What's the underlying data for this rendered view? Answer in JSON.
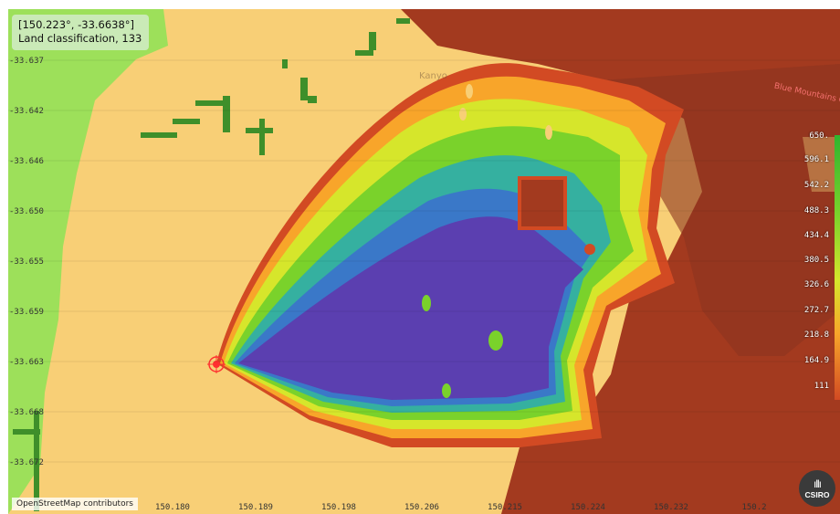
{
  "coordinate_readout": {
    "coords": "[150.223°, -33.6638°]",
    "classification": "Land classification, 133"
  },
  "latitude_labels": [
    "-33.637",
    "-33.642",
    "-33.646",
    "-33.650",
    "-33.655",
    "-33.659",
    "-33.663",
    "-33.668",
    "-33.672"
  ],
  "longitude_labels": [
    "150.180",
    "150.189",
    "150.198",
    "150.206",
    "150.215",
    "150.224",
    "150.232",
    "150.2"
  ],
  "legend": {
    "values": [
      "650.",
      "596.1",
      "542.2",
      "488.3",
      "434.4",
      "380.5",
      "326.6",
      "272.7",
      "218.8",
      "164.9",
      "111"
    ]
  },
  "attribution": "OpenStreetMap contributors",
  "logo_text": "CSIRO",
  "map_place_label": "Kanyo",
  "road_labels": [
    "Blue Mountains Cr"
  ],
  "colors": {
    "background": "#f8cf76",
    "forest": "#9de05a",
    "dark_green": "#3f8f2a",
    "brown": "#a33a1f",
    "fire_inner": "#5b3fb0",
    "ignition": "#ff3030"
  }
}
